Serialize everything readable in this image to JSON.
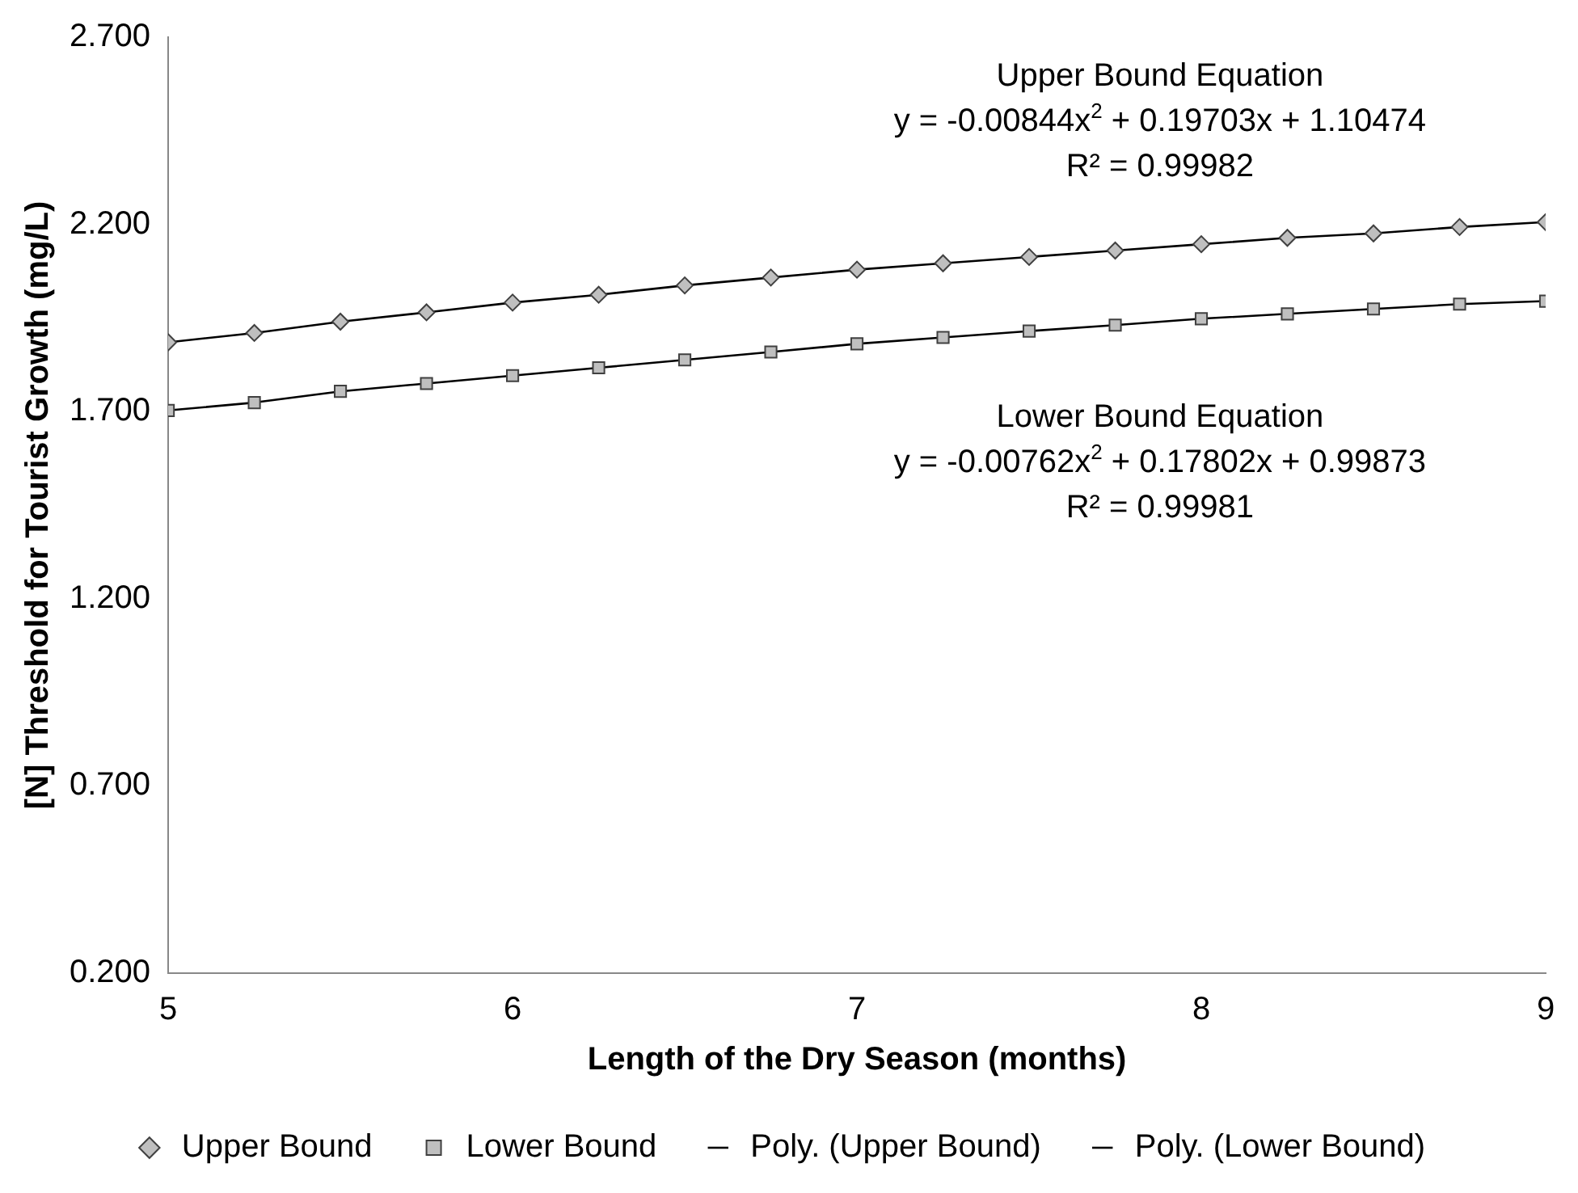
{
  "chart_data": {
    "type": "scatter",
    "xlabel": "Length of the Dry Season (months)",
    "ylabel": "[N] Threshold for Tourist Growth (mg/L)",
    "x": [
      5,
      5.25,
      5.5,
      5.75,
      6,
      6.25,
      6.5,
      6.75,
      7,
      7.25,
      7.5,
      7.75,
      8,
      8.25,
      8.5,
      8.75,
      9
    ],
    "series": [
      {
        "name": "Upper Bound",
        "type": "scatter",
        "marker": "diamond",
        "color": "#bfbfbf",
        "values": [
          1.885,
          1.91,
          1.94,
          1.965,
          1.991,
          2.012,
          2.037,
          2.058,
          2.079,
          2.096,
          2.113,
          2.13,
          2.147,
          2.164,
          2.176,
          2.193,
          2.206
        ]
      },
      {
        "name": "Lower Bound",
        "type": "scatter",
        "marker": "square",
        "color": "#bfbfbf",
        "values": [
          1.703,
          1.724,
          1.754,
          1.775,
          1.796,
          1.817,
          1.838,
          1.859,
          1.881,
          1.898,
          1.915,
          1.931,
          1.948,
          1.961,
          1.974,
          1.987,
          1.995
        ]
      },
      {
        "name": "Poly. (Upper Bound)",
        "type": "line",
        "marker": "none",
        "color": "#000000",
        "values": [
          1.885,
          1.91,
          1.94,
          1.965,
          1.991,
          2.012,
          2.037,
          2.058,
          2.079,
          2.096,
          2.113,
          2.13,
          2.147,
          2.164,
          2.176,
          2.193,
          2.206
        ]
      },
      {
        "name": "Poly. (Lower Bound)",
        "type": "line",
        "marker": "none",
        "color": "#000000",
        "values": [
          1.703,
          1.724,
          1.754,
          1.775,
          1.796,
          1.817,
          1.838,
          1.859,
          1.881,
          1.898,
          1.915,
          1.931,
          1.948,
          1.961,
          1.974,
          1.987,
          1.995
        ]
      }
    ],
    "xlim": [
      5,
      9
    ],
    "xticks": [
      5,
      6,
      7,
      8,
      9
    ],
    "ylim": [
      0.2,
      2.7
    ],
    "yticks": [
      {
        "value": 0.2,
        "label": "0.200"
      },
      {
        "value": 0.7,
        "label": "0.700"
      },
      {
        "value": 1.2,
        "label": "1.200"
      },
      {
        "value": 1.7,
        "label": "1.700"
      },
      {
        "value": 2.2,
        "label": "2.200"
      },
      {
        "value": 2.7,
        "label": "2.700"
      }
    ],
    "grid": false,
    "legend": "bottom",
    "annotations": [
      "Upper Bound Equation",
      "y = -0.00844x$^{2}$ + 0.19703x + 1.10474",
      "R² = 0.99982",
      "Lower Bound Equation",
      "y = -0.00762x$^{2}$ + 0.17802x + 0.99873",
      "R² = 0.99981"
    ]
  }
}
